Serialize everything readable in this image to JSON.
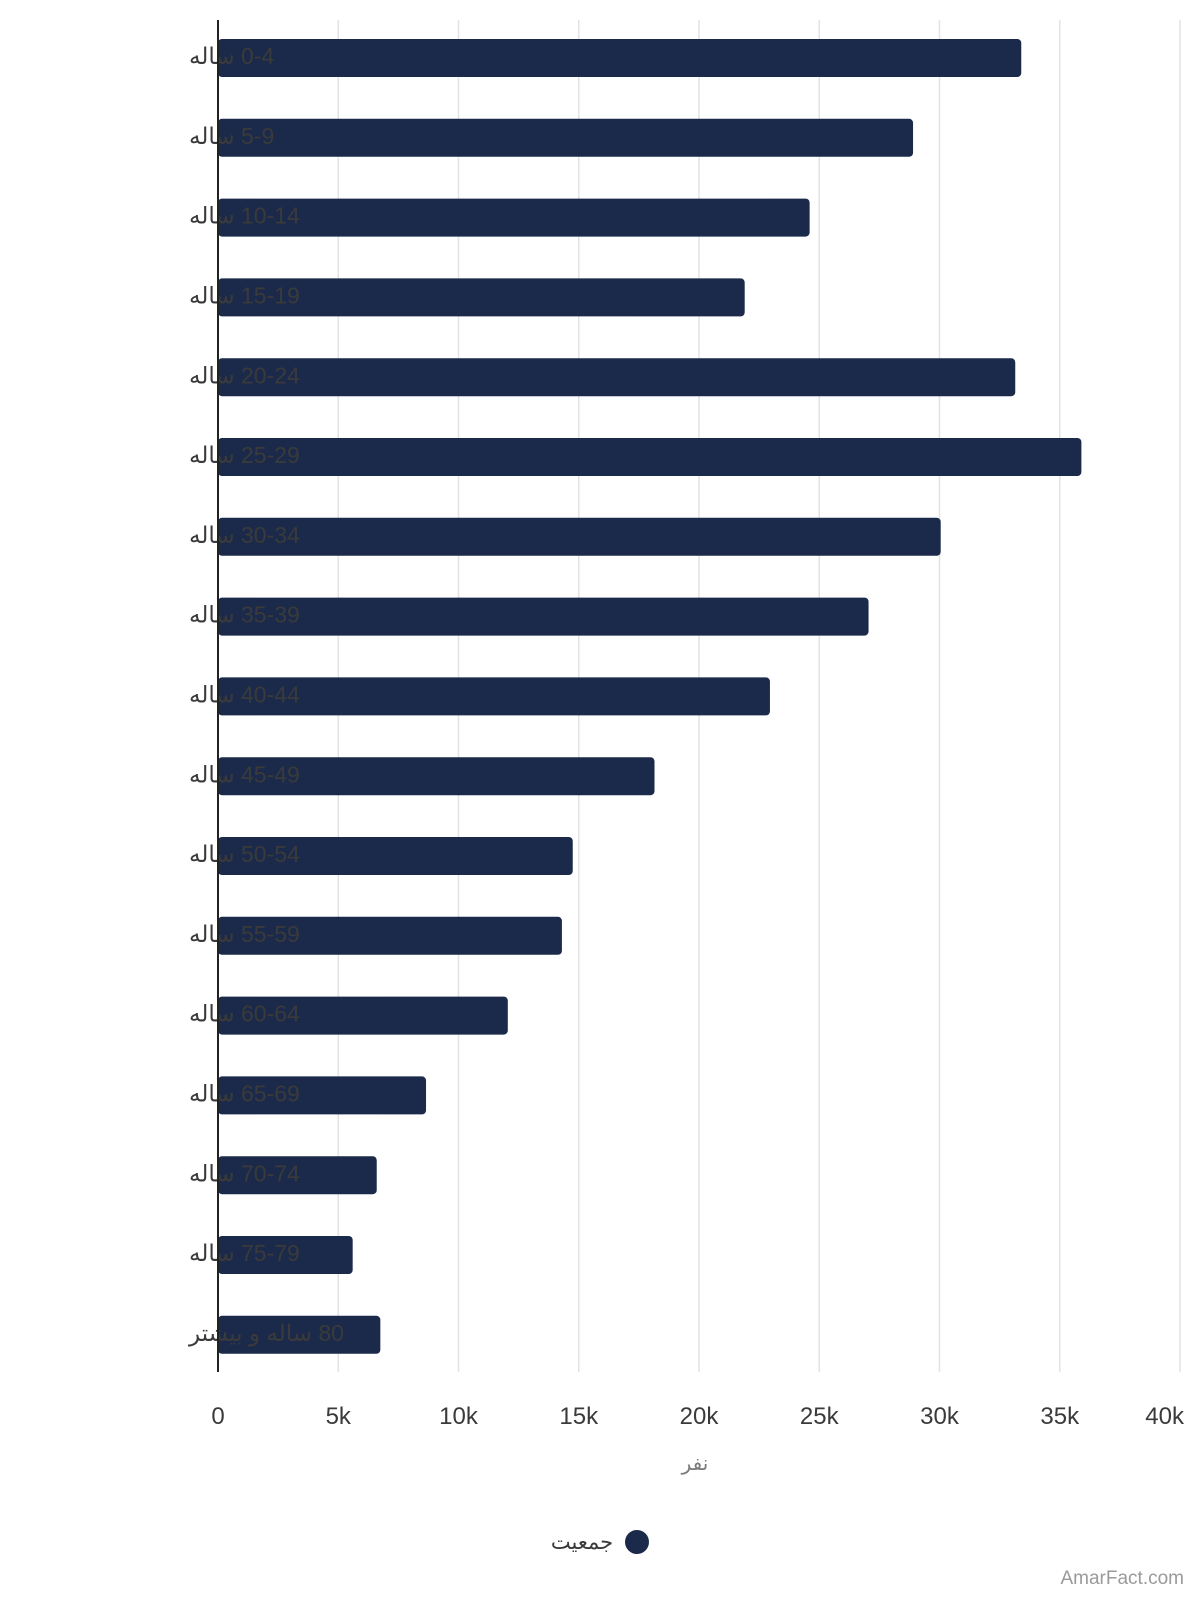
{
  "chart_data": {
    "type": "bar",
    "orientation": "horizontal",
    "categories": [
      "0-4 ساله",
      "5-9 ساله",
      "10-14 ساله",
      "15-19 ساله",
      "20-24 ساله",
      "25-29 ساله",
      "30-34 ساله",
      "35-39 ساله",
      "40-44 ساله",
      "45-49 ساله",
      "50-54 ساله",
      "55-59 ساله",
      "60-64 ساله",
      "65-69 ساله",
      "70-74 ساله",
      "75-79 ساله",
      "80 ساله و بیشتر"
    ],
    "series": [
      {
        "name": "جمعیت",
        "color": "#1b2a4a",
        "values": [
          33400,
          28900,
          24600,
          21900,
          33150,
          35900,
          30050,
          27050,
          22950,
          18150,
          14750,
          14300,
          12050,
          8650,
          6600,
          5600,
          6750
        ]
      }
    ],
    "xlim": [
      0,
      40000
    ],
    "xticks": [
      "0",
      "5k",
      "10k",
      "15k",
      "20k",
      "25k",
      "30k",
      "35k",
      "40k"
    ],
    "xlabel": "نفر",
    "ylabel": "",
    "title": "",
    "grid": "vertical",
    "legend_position": "bottom-center"
  },
  "watermark": "AmarFact.com"
}
